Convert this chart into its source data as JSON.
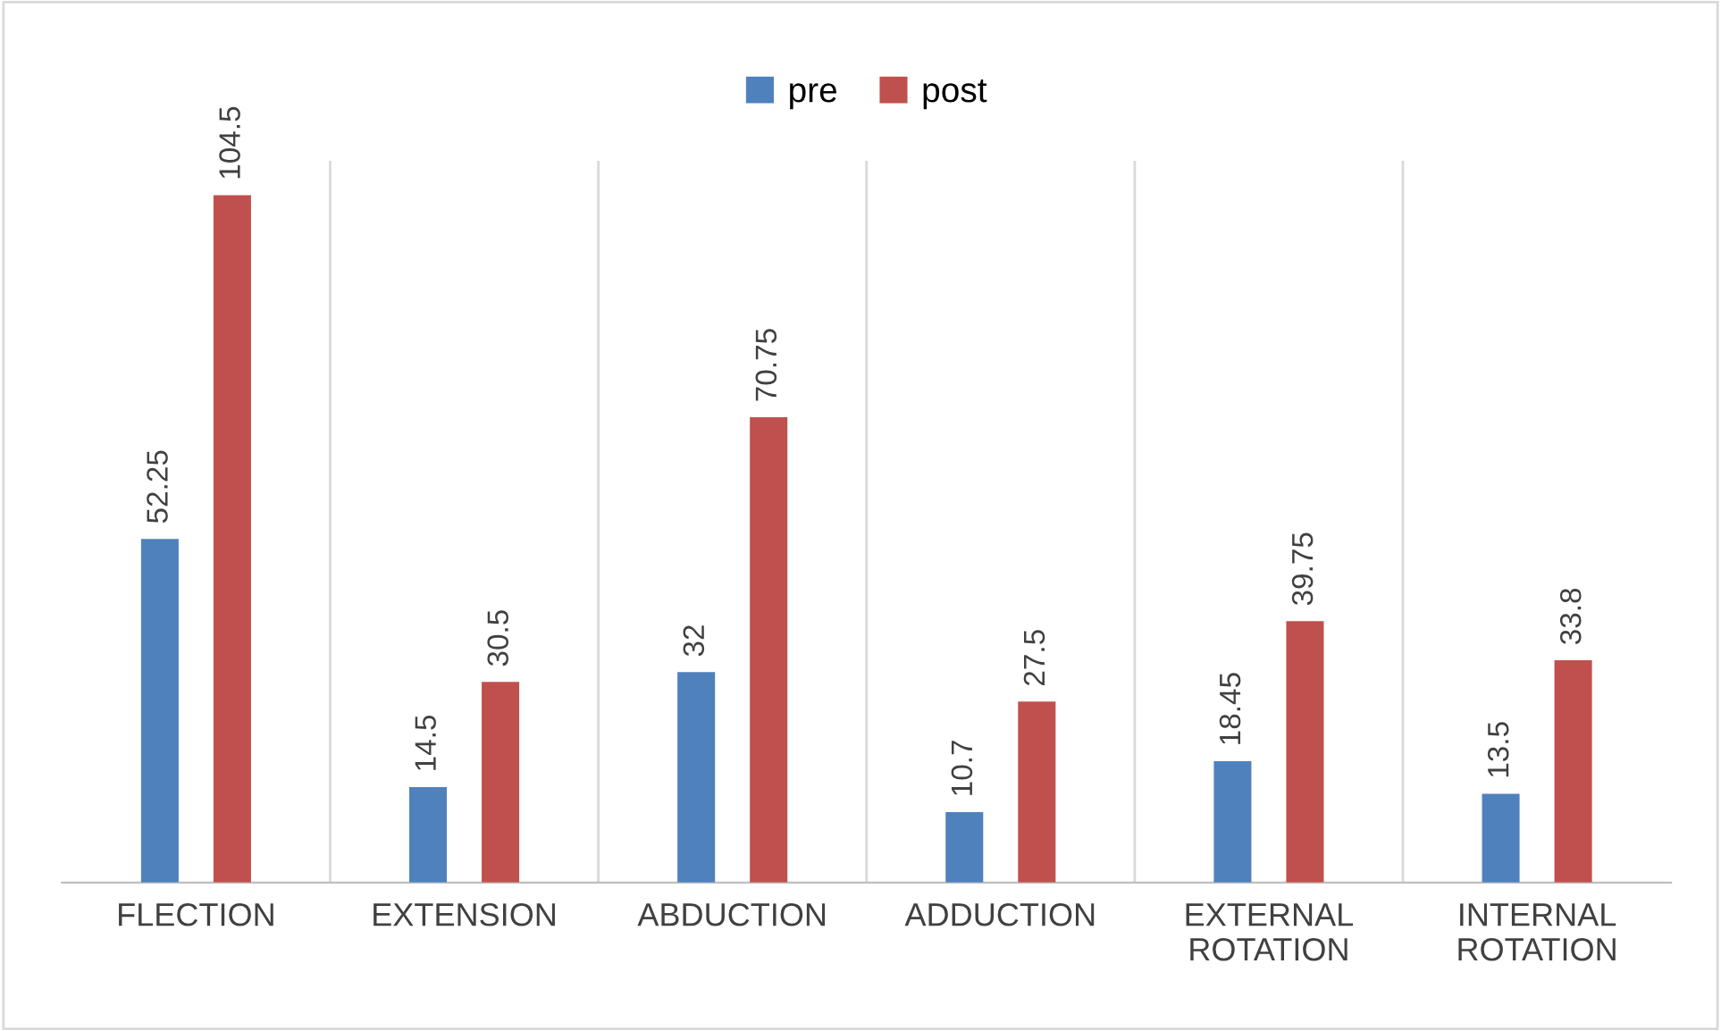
{
  "chart_data": {
    "type": "bar",
    "categories": [
      "FLECTION",
      "EXTENSION",
      "ABDUCTION",
      "ADDUCTION",
      "EXTERNAL\nROTATION",
      "INTERNAL\nROTATION"
    ],
    "series": [
      {
        "name": "pre",
        "color": "#4f81bd",
        "values": [
          52.25,
          14.5,
          32,
          10.7,
          18.45,
          13.5
        ]
      },
      {
        "name": "post",
        "color": "#c0504d",
        "values": [
          104.5,
          30.5,
          70.75,
          27.5,
          39.75,
          33.8
        ]
      }
    ],
    "data_labels": true,
    "grid": "x",
    "legend": "top",
    "tick_labels": "x"
  }
}
